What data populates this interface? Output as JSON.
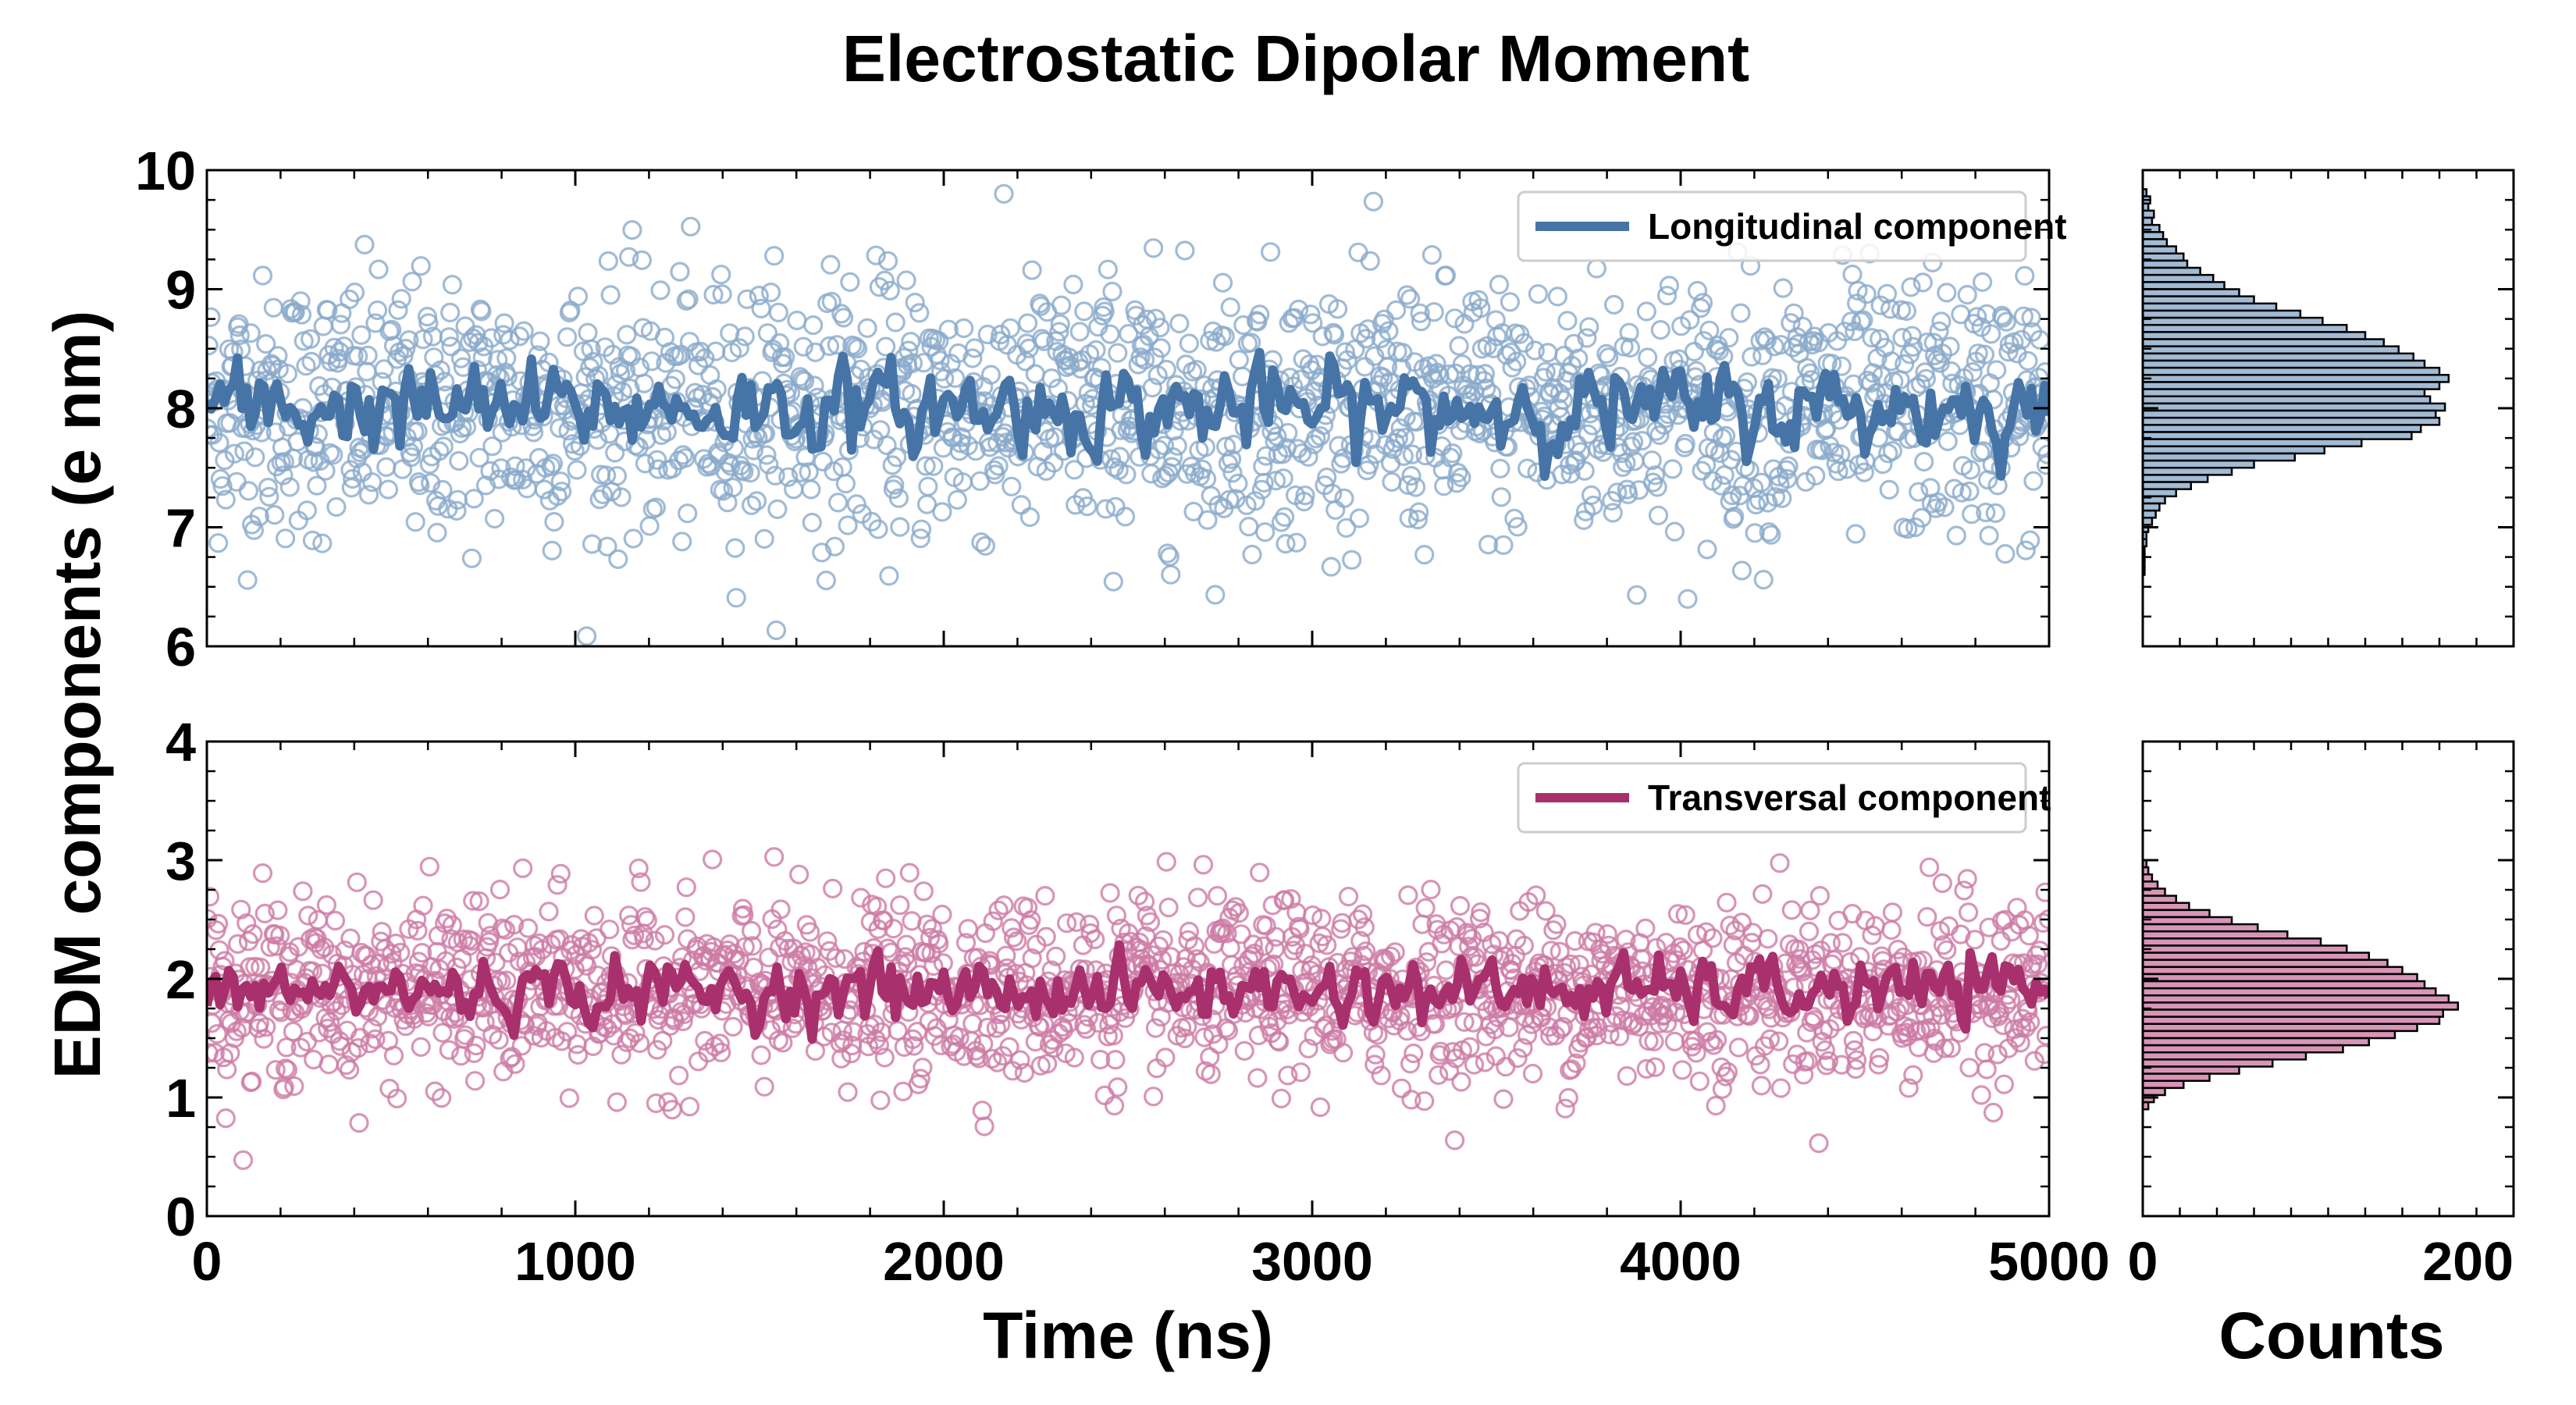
{
  "chart_data": {
    "type": "scatter",
    "title": "Electrostatic Dipolar Moment",
    "xlabel": "Time (ns)",
    "ylabel": "EDM components (e nm)",
    "xlim": [
      0,
      5000
    ],
    "x_ticks": [
      "0",
      "1000",
      "2000",
      "3000",
      "4000",
      "5000"
    ],
    "grid": false,
    "legend_placement": "top-right",
    "panels": [
      {
        "legend": "Longitudinal component",
        "color": "#4674a6",
        "marker_color": "#8aaacb",
        "ylim": [
          6,
          10
        ],
        "y_ticks": [
          "6",
          "7",
          "8",
          "9",
          "10"
        ],
        "mean": 8.0,
        "std": 0.55,
        "moving_average_amplitude": 0.3
      },
      {
        "legend": "Transversal component",
        "color": "#a8306d",
        "marker_color": "#cd7ba5",
        "ylim": [
          0,
          4
        ],
        "y_ticks": [
          "0",
          "1",
          "2",
          "3",
          "4"
        ],
        "mean": 1.9,
        "std": 0.38,
        "moving_average_amplitude": 0.22
      }
    ],
    "histogram": {
      "xlabel": "Counts",
      "xlim": [
        0,
        200
      ],
      "x_ticks": [
        "0",
        "200"
      ],
      "bins": [
        {
          "panel": 0,
          "centers": [
            9.81,
            9.75,
            9.69,
            9.63,
            9.57,
            9.51,
            9.45,
            9.39,
            9.33,
            9.27,
            9.21,
            9.15,
            9.09,
            9.03,
            8.97,
            8.91,
            8.85,
            8.79,
            8.73,
            8.67,
            8.61,
            8.55,
            8.49,
            8.43,
            8.37,
            8.31,
            8.25,
            8.19,
            8.13,
            8.07,
            8.01,
            7.95,
            7.89,
            7.83,
            7.77,
            7.71,
            7.65,
            7.59,
            7.53,
            7.47,
            7.41,
            7.35,
            7.29,
            7.23,
            7.17,
            7.11,
            7.05,
            6.99,
            6.93,
            6.87,
            6.81,
            6.75,
            6.69,
            6.63
          ],
          "counts": [
            2,
            4,
            3,
            6,
            5,
            9,
            11,
            13,
            18,
            22,
            24,
            31,
            38,
            44,
            52,
            60,
            72,
            85,
            97,
            110,
            120,
            130,
            138,
            146,
            152,
            160,
            165,
            160,
            152,
            155,
            163,
            158,
            160,
            150,
            145,
            118,
            98,
            82,
            60,
            48,
            35,
            26,
            18,
            12,
            9,
            7,
            5,
            3,
            2,
            2,
            1,
            1,
            1,
            1
          ]
        },
        {
          "panel": 1,
          "centers": [
            2.97,
            2.91,
            2.85,
            2.79,
            2.73,
            2.67,
            2.61,
            2.55,
            2.49,
            2.43,
            2.37,
            2.31,
            2.25,
            2.19,
            2.13,
            2.07,
            2.01,
            1.95,
            1.89,
            1.83,
            1.77,
            1.71,
            1.65,
            1.59,
            1.53,
            1.47,
            1.41,
            1.35,
            1.29,
            1.23,
            1.17,
            1.11,
            1.05,
            0.99,
            0.93
          ],
          "counts": [
            2,
            3,
            5,
            8,
            12,
            18,
            25,
            36,
            48,
            62,
            78,
            96,
            110,
            122,
            132,
            140,
            148,
            152,
            158,
            165,
            170,
            162,
            160,
            148,
            136,
            122,
            108,
            88,
            70,
            52,
            36,
            22,
            12,
            6,
            3
          ]
        }
      ]
    }
  }
}
